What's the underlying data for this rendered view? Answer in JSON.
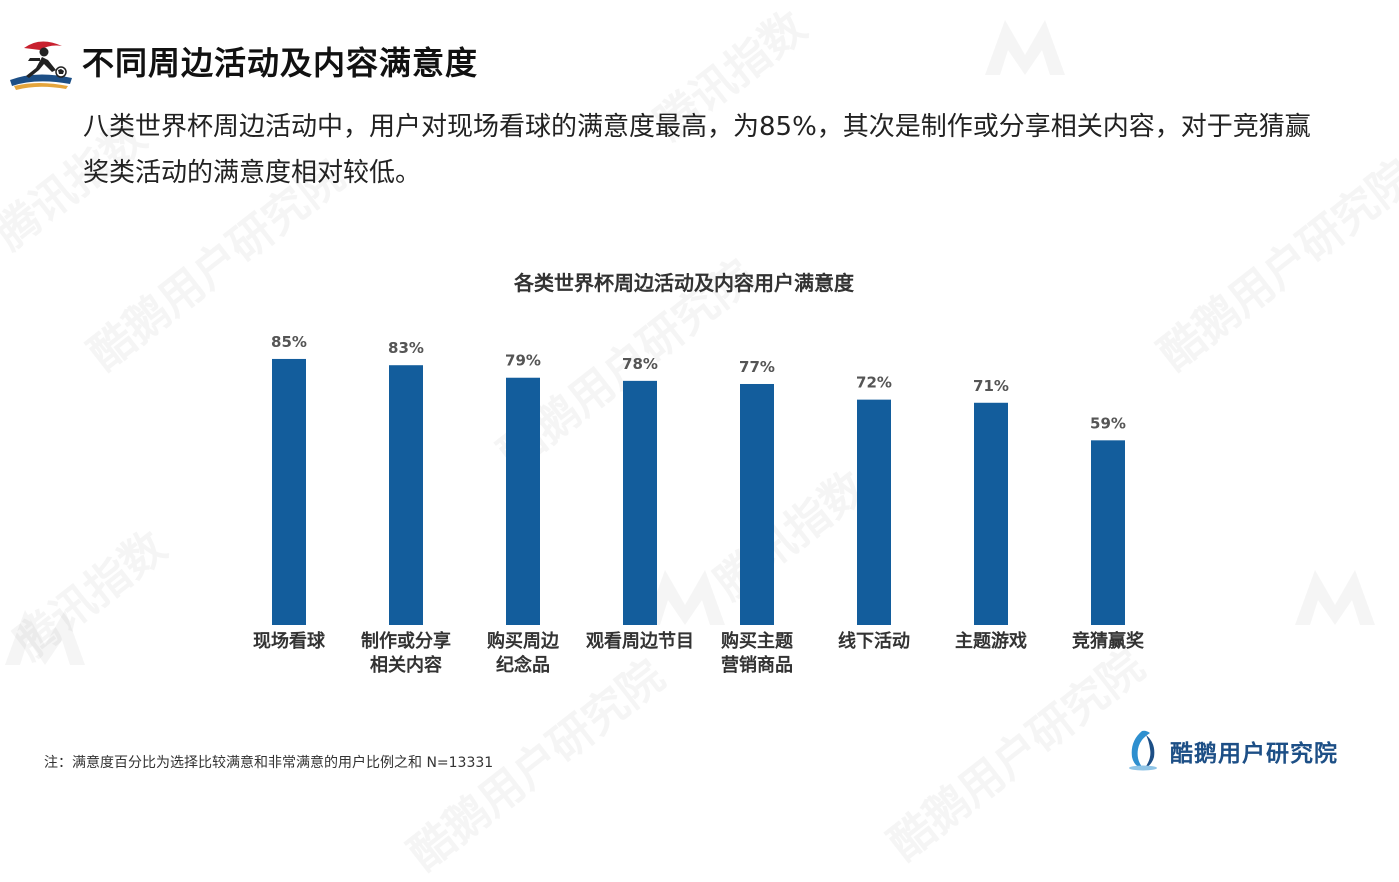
{
  "page": {
    "title": "不同周边活动及内容满意度",
    "subtitle": "八类世界杯周边活动中，用户对现场看球的满意度最高，为85%，其次是制作或分享相关内容，对于竞猜赢奖类活动的满意度相对较低。",
    "footnote": "注：满意度百分比为选择比较满意和非常满意的用户比例之和 N=13331"
  },
  "brand": {
    "name": "酷鹅用户研究院",
    "icon": "penguin-logo-icon",
    "color": "#1d4f86"
  },
  "logo": {
    "icon": "football-player-logo-icon"
  },
  "watermark": {
    "texts": [
      "腾讯指数",
      "酷鹅用户研究院"
    ]
  },
  "chart_data": {
    "type": "bar",
    "title": "各类世界杯周边活动及内容用户满意度",
    "categories": [
      [
        "现场看球"
      ],
      [
        "制作或分享",
        "相关内容"
      ],
      [
        "购买周边",
        "纪念品"
      ],
      [
        "观看周边节目"
      ],
      [
        "购买主题",
        "营销商品"
      ],
      [
        "线下活动"
      ],
      [
        "主题游戏"
      ],
      [
        "竞猜赢奖"
      ]
    ],
    "values": [
      85,
      83,
      79,
      78,
      77,
      72,
      71,
      59
    ],
    "value_labels": [
      "85%",
      "83%",
      "79%",
      "78%",
      "77%",
      "72%",
      "71%",
      "59%"
    ],
    "ylim": [
      0,
      100
    ],
    "grid": false,
    "bar_color": "#135d9c"
  }
}
